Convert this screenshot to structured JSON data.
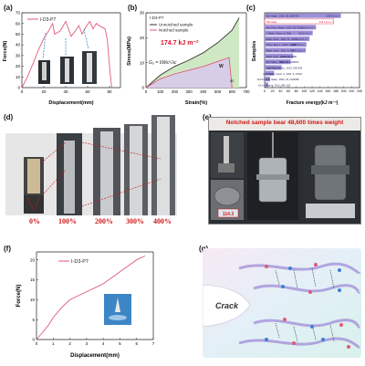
{
  "panels": {
    "a": {
      "label": "(a)",
      "legend": "I-D3-P7",
      "xlabel": "Displacement(mm)",
      "ylabel": "Force(N)",
      "xticks": [
        "0",
        "20",
        "40",
        "60",
        "80"
      ],
      "yticks": [
        "0",
        "10",
        "20",
        "30",
        "40",
        "50",
        "60",
        "70"
      ]
    },
    "b": {
      "label": "(b)",
      "legend_title": "I-D3-P7",
      "legend_items": [
        "Unnotched sample",
        "Notched sample"
      ],
      "xlabel": "Strain(%)",
      "ylabel": "Stress(MPa)",
      "value_text": "174.7 kJ m⁻²",
      "formula": "G₀ = 6Wε/√λc",
      "w_label": "W",
      "lambda_label": "λc",
      "xticks": [
        "0",
        "100",
        "200",
        "300",
        "400",
        "500",
        "600",
        "700"
      ],
      "yticks": [
        "0",
        "10",
        "20",
        "30"
      ]
    },
    "c": {
      "label": "(c)",
      "ylabel": "Samples",
      "xlabel": "Fracture energy(kJ m⁻²)",
      "xticks": [
        "0",
        "20",
        "40",
        "60",
        "80",
        "100",
        "120",
        "140",
        "160",
        "180",
        "200",
        "220",
        "240"
      ]
    },
    "d": {
      "label": "(d)",
      "strains": [
        "0%",
        "100%",
        "200%",
        "300%",
        "400%"
      ]
    },
    "e": {
      "label": "(e)",
      "title": "Notched sample bear 48,600 times weight",
      "scale_reading": "114.3"
    },
    "f": {
      "label": "(f)",
      "legend": "I-D3-P7",
      "xlabel": "Displacement(mm)",
      "ylabel": "Force(N)",
      "xticks": [
        "0",
        "1",
        "2",
        "3",
        "4",
        "5",
        "6",
        "7"
      ],
      "yticks": [
        "0",
        "5",
        "10",
        "15",
        "20"
      ]
    },
    "g": {
      "label": "(g)",
      "crack_label": "Crack"
    }
  },
  "chart_data": [
    {
      "type": "line",
      "panel": "a",
      "xlabel": "Displacement(mm)",
      "ylabel": "Force(N)",
      "xlim": [
        0,
        90
      ],
      "ylim": [
        0,
        70
      ],
      "series": [
        {
          "name": "I-D3-P7",
          "x": [
            0,
            5,
            10,
            15,
            20,
            25,
            28,
            30,
            35,
            40,
            45,
            48,
            52,
            55,
            58,
            62,
            65,
            68,
            72,
            76,
            78,
            80,
            82
          ],
          "y": [
            0,
            10,
            22,
            35,
            46,
            54,
            60,
            50,
            53,
            62,
            48,
            52,
            58,
            50,
            56,
            62,
            55,
            60,
            57,
            55,
            45,
            20,
            0
          ]
        }
      ]
    },
    {
      "type": "area",
      "panel": "b",
      "xlabel": "Strain(%)",
      "ylabel": "Stress(MPa)",
      "xlim": [
        0,
        700
      ],
      "ylim": [
        0,
        30
      ],
      "series": [
        {
          "name": "Unnotched sample",
          "x": [
            0,
            100,
            200,
            300,
            400,
            500,
            600,
            650
          ],
          "y": [
            0,
            5,
            8.5,
            11,
            14,
            18,
            23,
            28
          ]
        },
        {
          "name": "Notched sample",
          "x": [
            0,
            100,
            200,
            300,
            400,
            500,
            580,
            600
          ],
          "y": [
            0,
            3.5,
            5.5,
            7,
            8.5,
            10.5,
            12,
            0
          ]
        }
      ]
    },
    {
      "type": "bar",
      "panel": "c",
      "xlabel": "Fracture energy(kJ m⁻²)",
      "ylabel": "Samples",
      "xlim": [
        0,
        240
      ],
      "categories": [
        "Adv. Mater., 2020, 32, 2005735",
        "This study",
        "Adv. Funct. Mater., 2024, 35, 2339",
        "J. Mater. Chem. A, 2021",
        "Mater. Horiz., 2024, 11, 3239",
        "Chem. Eng. J., 2024, 145007",
        "Mater. Horiz., 2021, 8, 3077",
        "Mater. Horiz., 2023, 10, 2996",
        "Adv. Mater., 2022, 34, 2108243",
        "Adv. Funct. Mater., 2019, 1907109",
        "J. Mater. Chem. A, 2021, 9, 27523",
        "Adv. Mater., 2022, 34, 2108438",
        "Nature, 2012, 489, 133"
      ],
      "values": [
        192.9,
        174.7,
        129.9,
        121.5,
        113.6,
        105.7,
        104.1,
        72.1,
        66.0,
        42.7,
        24.0,
        13.8,
        9.0
      ],
      "value_labels": [
        "192.9 kJ m⁻²",
        "174.7 kJ m⁻²",
        "129.9 kJ m⁻²",
        "121.5 kJ m⁻²",
        "113.6 kJ m⁻²",
        "105.7 kJ m⁻²",
        "104.1 kJ m⁻²",
        "72.1 kJ m⁻²",
        "66 kJ m⁻²",
        "42.7 kJ m⁻²",
        "24 kJ m⁻²",
        "13.8 kJ m⁻²",
        "9 kJ m⁻²"
      ],
      "colors": {
        "bar": "#9e8fd8",
        "highlight": "#ffffff"
      }
    },
    {
      "type": "line",
      "panel": "f",
      "xlabel": "Displacement(mm)",
      "ylabel": "Force(N)",
      "xlim": [
        0,
        7
      ],
      "ylim": [
        0,
        22
      ],
      "series": [
        {
          "name": "I-D3-P7",
          "x": [
            0,
            0.3,
            0.7,
            1.0,
            1.5,
            2.0,
            2.5,
            3.0,
            3.5,
            4.0,
            4.5,
            5.0,
            5.5,
            6.0,
            6.5
          ],
          "y": [
            0,
            1.5,
            3.5,
            5.5,
            8.0,
            10.0,
            11.0,
            12.0,
            13.0,
            14.0,
            15.5,
            17.0,
            18.5,
            20.0,
            21.0
          ]
        }
      ]
    }
  ],
  "colors": {
    "curve": "#e05a78",
    "dark_curve": "#333333",
    "fill_green": "#cfe8c4",
    "fill_purple": "#d8cde6",
    "highlight_red": "#e0102a",
    "bar": "#9e8fd8"
  }
}
